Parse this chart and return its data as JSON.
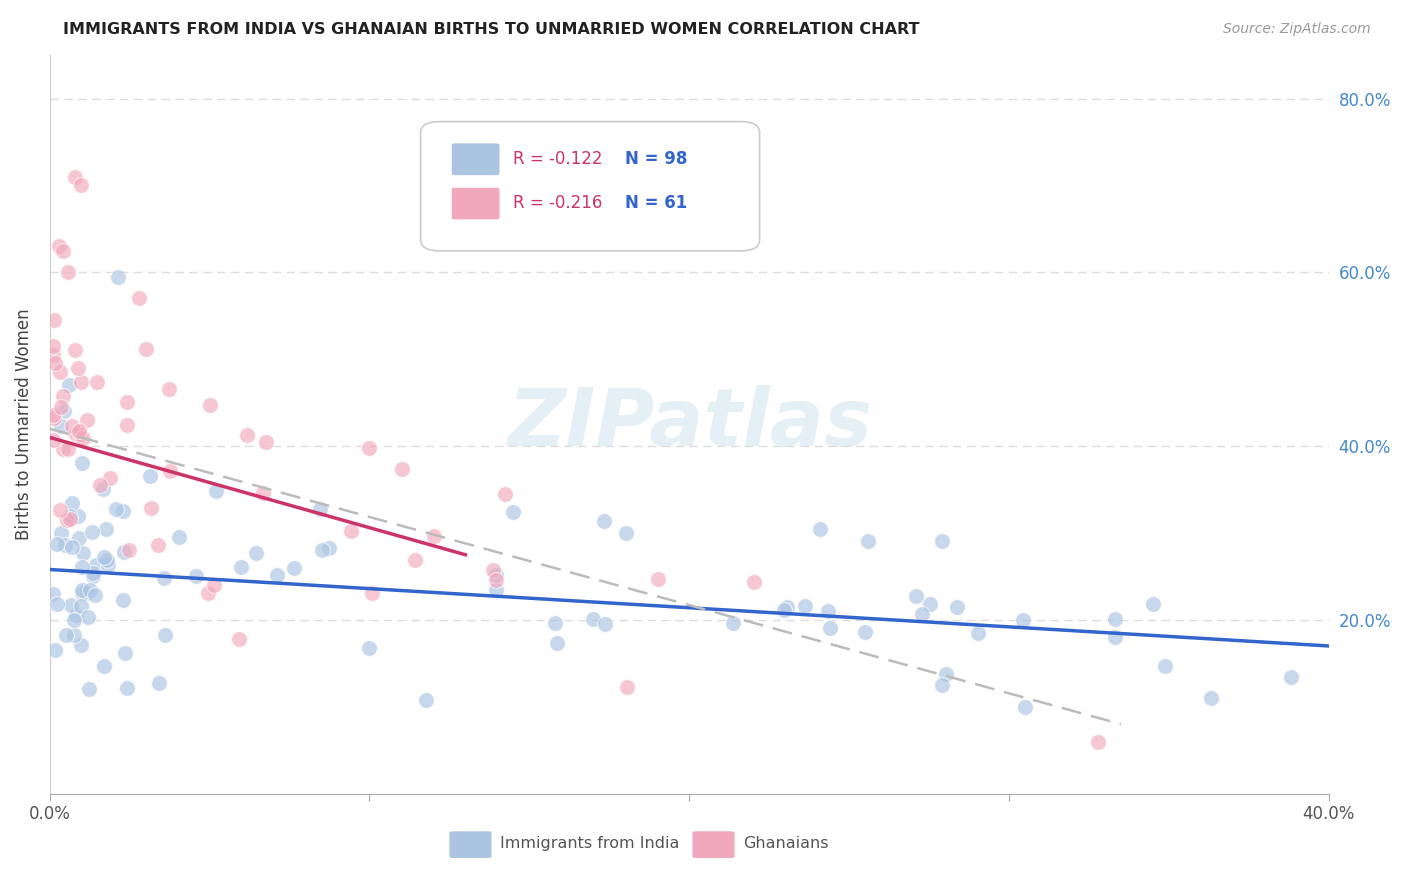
{
  "title": "IMMIGRANTS FROM INDIA VS GHANAIAN BIRTHS TO UNMARRIED WOMEN CORRELATION CHART",
  "source": "Source: ZipAtlas.com",
  "ylabel": "Births to Unmarried Women",
  "legend_india": {
    "R": "-0.122",
    "N": "98",
    "color": "#aac4e2"
  },
  "legend_ghana": {
    "R": "-0.216",
    "N": "61",
    "color": "#f2a8bc"
  },
  "india_color": "#aac4e2",
  "ghana_color": "#f2a8bc",
  "india_line_color": "#3366cc",
  "ghana_line_color": "#cc3366",
  "ghana_trend_line_color": "#cccccc",
  "watermark_text": "ZIPatlas",
  "xlim": [
    0.0,
    0.4
  ],
  "ylim": [
    0.0,
    0.85
  ],
  "background_color": "#ffffff",
  "grid_color": "#dddddd",
  "right_tick_color": "#4488cc",
  "bottom_label_color": "#555555"
}
